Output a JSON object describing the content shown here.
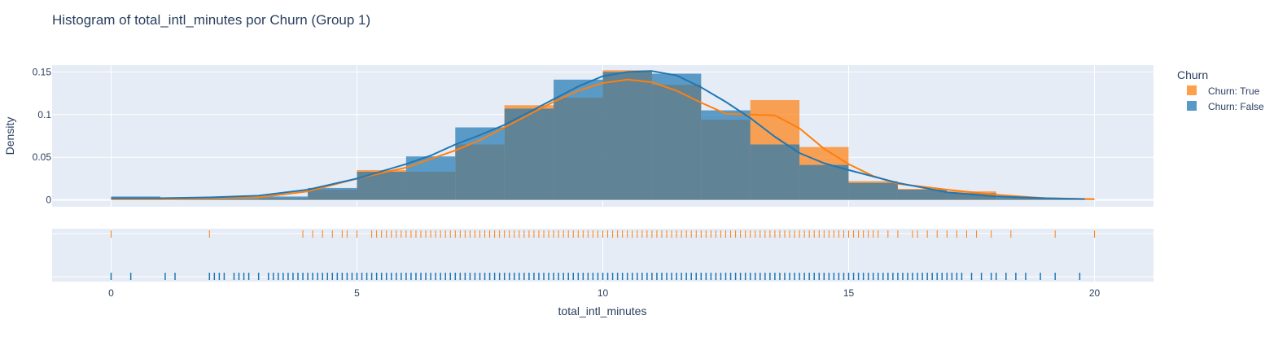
{
  "chart_data": {
    "type": "histogram",
    "title": "Histogram of total_intl_minutes por Churn (Group 1)",
    "xlabel": "total_intl_minutes",
    "ylabel": "Density",
    "xlim": [
      -1.2,
      21.2
    ],
    "ylim": [
      -0.008,
      0.158
    ],
    "x_ticks": [
      0,
      5,
      10,
      15,
      20
    ],
    "y_ticks": [
      0,
      0.05,
      0.1,
      0.15
    ],
    "y_tick_labels": [
      "0",
      "0.05",
      "0.1",
      "0.15"
    ],
    "grid": true,
    "bin_edges": [
      0,
      1,
      2,
      3,
      4,
      5,
      6,
      7,
      8,
      9,
      10,
      11,
      12,
      13,
      14,
      15,
      16,
      17,
      18,
      19,
      20
    ],
    "legend": {
      "title": "Churn",
      "position": "right"
    },
    "series": [
      {
        "name": "Churn: False",
        "color": "#1f77b4",
        "density": [
          0.004,
          0.001,
          0.002,
          0.004,
          0.014,
          0.033,
          0.051,
          0.085,
          0.107,
          0.141,
          0.15,
          0.148,
          0.105,
          0.065,
          0.041,
          0.02,
          0.012,
          0.008,
          0.003,
          0.001
        ],
        "kde_x": [
          0,
          1,
          2,
          3,
          4,
          5,
          6,
          6.5,
          7,
          7.5,
          8,
          8.5,
          9,
          9.5,
          10,
          10.5,
          11,
          11.5,
          12,
          12.5,
          13,
          13.5,
          14,
          14.5,
          15,
          16,
          17,
          18,
          19,
          19.8
        ],
        "kde_y": [
          0.002,
          0.002,
          0.003,
          0.005,
          0.012,
          0.025,
          0.042,
          0.052,
          0.065,
          0.076,
          0.088,
          0.103,
          0.118,
          0.133,
          0.145,
          0.15,
          0.151,
          0.146,
          0.132,
          0.115,
          0.096,
          0.074,
          0.055,
          0.043,
          0.035,
          0.02,
          0.009,
          0.004,
          0.002,
          0.001
        ],
        "rug": [
          0,
          0.4,
          1.1,
          1.3,
          2.0,
          2.1,
          2.2,
          2.3,
          2.5,
          2.6,
          2.7,
          2.8,
          3.0,
          3.2,
          3.3,
          3.4,
          3.5,
          3.6,
          3.7,
          3.8,
          3.9,
          4.0,
          4.1,
          4.2,
          4.3,
          4.4,
          4.5,
          4.6,
          4.7,
          4.8,
          4.9,
          5.0,
          5.1,
          5.2,
          5.3,
          5.4,
          5.5,
          5.6,
          5.7,
          5.8,
          5.9,
          6.0,
          6.1,
          6.2,
          6.3,
          6.4,
          6.5,
          6.6,
          6.7,
          6.8,
          6.9,
          7.0,
          7.1,
          7.2,
          7.3,
          7.4,
          7.5,
          7.6,
          7.7,
          7.8,
          7.9,
          8.0,
          8.1,
          8.2,
          8.3,
          8.4,
          8.5,
          8.6,
          8.7,
          8.8,
          8.9,
          9.0,
          9.1,
          9.2,
          9.3,
          9.4,
          9.5,
          9.6,
          9.7,
          9.8,
          9.9,
          10.0,
          10.1,
          10.2,
          10.3,
          10.4,
          10.5,
          10.6,
          10.7,
          10.8,
          10.9,
          11.0,
          11.1,
          11.2,
          11.3,
          11.4,
          11.5,
          11.6,
          11.7,
          11.8,
          11.9,
          12.0,
          12.1,
          12.2,
          12.3,
          12.4,
          12.5,
          12.6,
          12.7,
          12.8,
          12.9,
          13.0,
          13.1,
          13.2,
          13.3,
          13.4,
          13.5,
          13.6,
          13.7,
          13.8,
          13.9,
          14.0,
          14.1,
          14.2,
          14.3,
          14.4,
          14.5,
          14.6,
          14.7,
          14.8,
          14.9,
          15.0,
          15.1,
          15.2,
          15.3,
          15.4,
          15.5,
          15.6,
          15.7,
          15.8,
          15.9,
          16.0,
          16.1,
          16.2,
          16.3,
          16.4,
          16.5,
          16.6,
          16.7,
          16.8,
          16.9,
          17.0,
          17.1,
          17.2,
          17.3,
          17.5,
          17.7,
          17.9,
          18.0,
          18.2,
          18.4,
          18.6,
          18.9,
          19.2,
          19.7
        ]
      },
      {
        "name": "Churn: True",
        "color": "#ff7f0e",
        "density": [
          0.002,
          0.001,
          0.001,
          0.002,
          0.012,
          0.035,
          0.033,
          0.065,
          0.111,
          0.12,
          0.152,
          0.135,
          0.094,
          0.117,
          0.062,
          0.022,
          0.013,
          0.01,
          0.002,
          0.001
        ],
        "kde_x": [
          0,
          1,
          2,
          3,
          4,
          5,
          6,
          6.5,
          7,
          7.5,
          8,
          8.5,
          9,
          9.5,
          10,
          10.5,
          11,
          11.5,
          12,
          12.5,
          13,
          13.5,
          14,
          14.5,
          15,
          15.5,
          16,
          17,
          18,
          19,
          20
        ],
        "kde_y": [
          0.001,
          0.001,
          0.002,
          0.003,
          0.01,
          0.025,
          0.038,
          0.048,
          0.058,
          0.07,
          0.085,
          0.1,
          0.115,
          0.128,
          0.137,
          0.141,
          0.138,
          0.128,
          0.114,
          0.101,
          0.1,
          0.099,
          0.084,
          0.06,
          0.042,
          0.028,
          0.019,
          0.012,
          0.006,
          0.002,
          0.001
        ],
        "rug": [
          0,
          2.0,
          3.9,
          4.1,
          4.3,
          4.5,
          4.7,
          4.8,
          5.0,
          5.3,
          5.4,
          5.5,
          5.6,
          5.7,
          5.8,
          5.9,
          6.0,
          6.1,
          6.2,
          6.3,
          6.4,
          6.5,
          6.6,
          6.7,
          6.8,
          6.9,
          7.0,
          7.1,
          7.2,
          7.3,
          7.4,
          7.5,
          7.6,
          7.7,
          7.8,
          7.9,
          8.0,
          8.1,
          8.2,
          8.3,
          8.4,
          8.5,
          8.6,
          8.7,
          8.8,
          8.9,
          9.0,
          9.1,
          9.2,
          9.3,
          9.4,
          9.5,
          9.6,
          9.7,
          9.8,
          9.9,
          10.0,
          10.1,
          10.2,
          10.3,
          10.4,
          10.5,
          10.6,
          10.7,
          10.8,
          10.9,
          11.0,
          11.1,
          11.2,
          11.3,
          11.4,
          11.5,
          11.6,
          11.7,
          11.8,
          11.9,
          12.0,
          12.1,
          12.2,
          12.3,
          12.4,
          12.5,
          12.6,
          12.7,
          12.8,
          12.9,
          13.0,
          13.1,
          13.2,
          13.3,
          13.4,
          13.5,
          13.6,
          13.7,
          13.8,
          13.9,
          14.0,
          14.1,
          14.2,
          14.3,
          14.4,
          14.5,
          14.6,
          14.7,
          14.8,
          14.9,
          15.0,
          15.1,
          15.2,
          15.3,
          15.4,
          15.5,
          15.6,
          15.8,
          16.0,
          16.3,
          16.4,
          16.6,
          16.8,
          17.0,
          17.2,
          17.4,
          17.6,
          17.9,
          18.3,
          19.2,
          20.0
        ]
      }
    ]
  }
}
